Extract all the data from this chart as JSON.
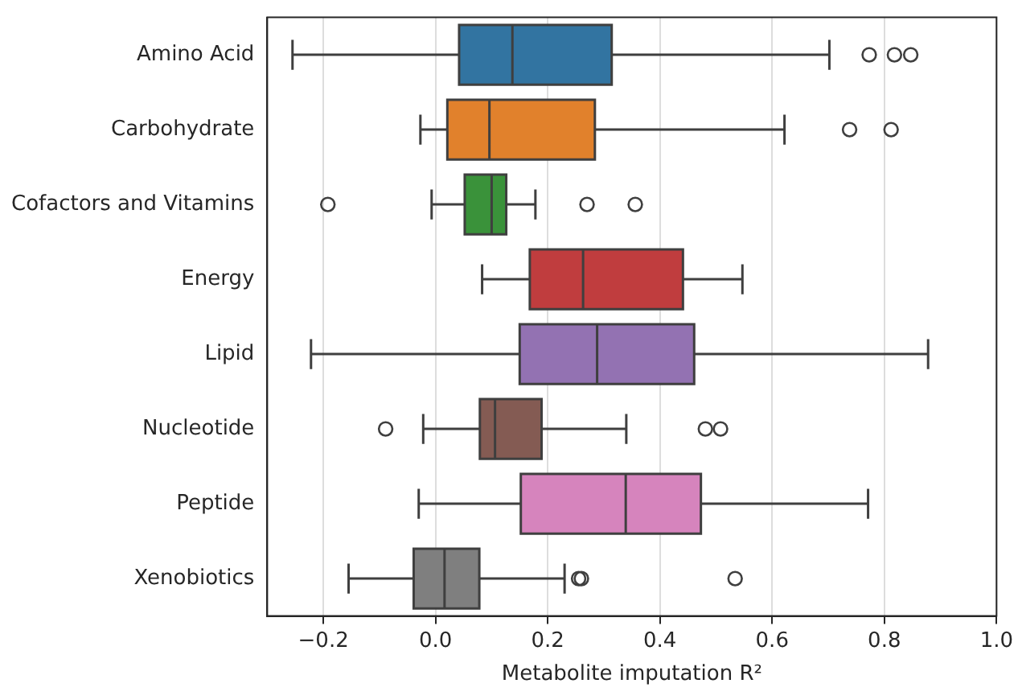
{
  "chart_data": {
    "type": "box",
    "orientation": "horizontal",
    "xlabel": "Metabolite imputation R²",
    "categories": [
      "Amino Acid",
      "Carbohydrate",
      "Cofactors and Vitamins",
      "Energy",
      "Lipid",
      "Nucleotide",
      "Peptide",
      "Xenobiotics"
    ],
    "colors": [
      "#3274a1",
      "#e1812c",
      "#3a923a",
      "#c03d3e",
      "#9372b2",
      "#845b53",
      "#d684bd",
      "#7f7f7f"
    ],
    "boxes": [
      {
        "low": -0.255,
        "q1": 0.042,
        "median": 0.137,
        "q3": 0.314,
        "high": 0.702,
        "outliers": [
          0.773,
          0.818,
          0.847
        ]
      },
      {
        "low": -0.027,
        "q1": 0.021,
        "median": 0.096,
        "q3": 0.284,
        "high": 0.622,
        "outliers": [
          0.738,
          0.812
        ]
      },
      {
        "low": -0.007,
        "q1": 0.052,
        "median": 0.1,
        "q3": 0.126,
        "high": 0.178,
        "outliers": [
          -0.192,
          0.27,
          0.356
        ]
      },
      {
        "low": 0.083,
        "q1": 0.168,
        "median": 0.263,
        "q3": 0.441,
        "high": 0.547
      },
      {
        "low": -0.222,
        "q1": 0.15,
        "median": 0.288,
        "q3": 0.461,
        "high": 0.878
      },
      {
        "low": -0.022,
        "q1": 0.079,
        "median": 0.106,
        "q3": 0.189,
        "high": 0.34,
        "outliers": [
          -0.089,
          0.481,
          0.508
        ]
      },
      {
        "low": -0.03,
        "q1": 0.152,
        "median": 0.339,
        "q3": 0.473,
        "high": 0.771
      },
      {
        "low": -0.155,
        "q1": -0.039,
        "median": 0.016,
        "q3": 0.078,
        "high": 0.23,
        "outliers": [
          0.255,
          0.26,
          0.534
        ]
      }
    ],
    "xlim": [
      -0.3,
      1.0
    ],
    "xticks": [
      {
        "value": -0.2,
        "label": "−0.2"
      },
      {
        "value": 0,
        "label": "0.0"
      },
      {
        "value": 0.2,
        "label": "0.2"
      },
      {
        "value": 0.4,
        "label": "0.4"
      },
      {
        "value": 0.6,
        "label": "0.6"
      },
      {
        "value": 0.8,
        "label": "0.8"
      },
      {
        "value": 1,
        "label": "1.0"
      }
    ],
    "grid": "x",
    "legend": false
  }
}
